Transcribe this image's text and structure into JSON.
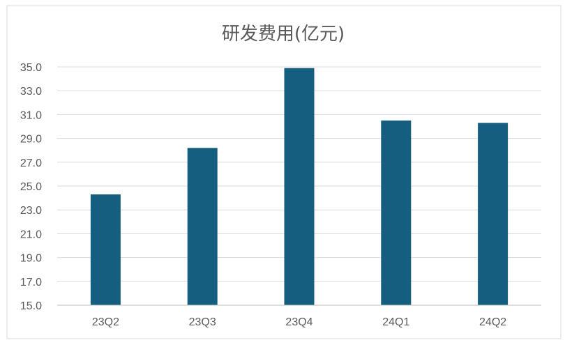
{
  "chart_data": {
    "type": "bar",
    "title": "研发费用(亿元)",
    "categories": [
      "23Q2",
      "23Q3",
      "23Q4",
      "24Q1",
      "24Q2"
    ],
    "values": [
      24.3,
      28.2,
      34.9,
      30.5,
      30.3
    ],
    "ylim": [
      15.0,
      35.0
    ],
    "yticks": [
      "15.0",
      "17.0",
      "19.0",
      "21.0",
      "23.0",
      "25.0",
      "27.0",
      "29.0",
      "31.0",
      "33.0",
      "35.0"
    ],
    "xlabel": "",
    "ylabel": "",
    "grid": true,
    "legend": "none",
    "bar_color": "#155e80",
    "grid_color": "#d9d9d9",
    "frame_color": "#d9d9d9"
  }
}
